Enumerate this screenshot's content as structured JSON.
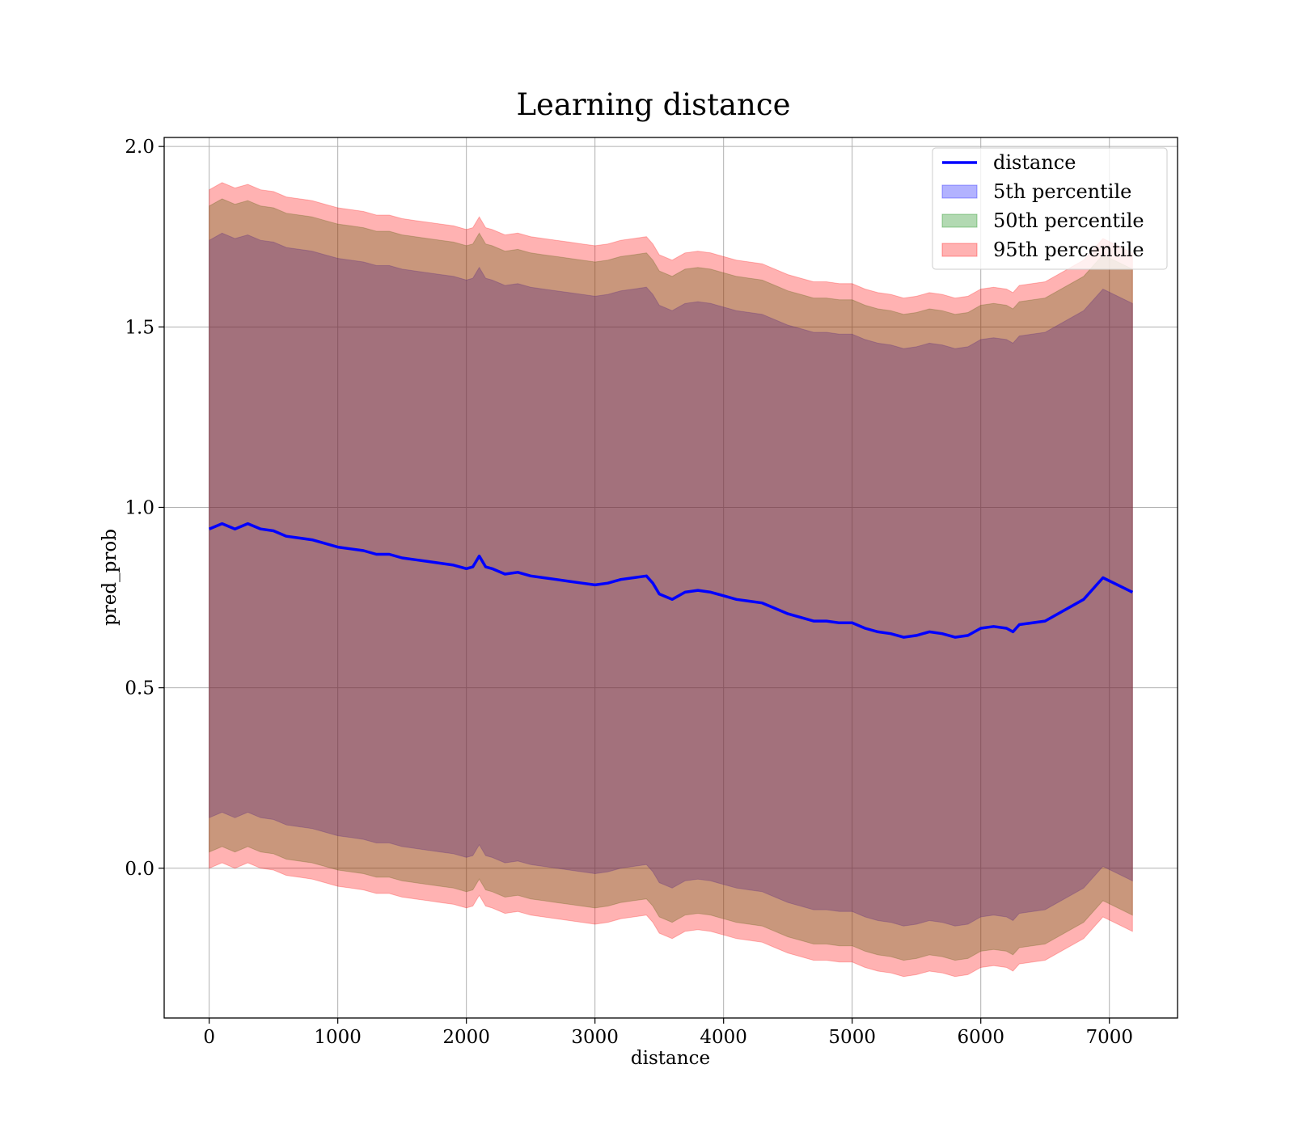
{
  "chart_data": {
    "type": "line",
    "title": "Learning distance",
    "xlabel": "distance",
    "ylabel": "pred_prob",
    "xlim": [
      -350,
      7530
    ],
    "ylim": [
      -0.415,
      2.025
    ],
    "xticks": [
      0,
      1000,
      2000,
      3000,
      4000,
      5000,
      6000,
      7000
    ],
    "yticks": [
      0.0,
      0.5,
      1.0,
      1.5,
      2.0
    ],
    "ytick_labels": [
      "0.0",
      "0.5",
      "1.0",
      "1.5",
      "2.0"
    ],
    "grid": true,
    "legend_position": "top-right",
    "x": [
      0,
      100,
      200,
      300,
      400,
      500,
      600,
      700,
      800,
      900,
      1000,
      1100,
      1200,
      1300,
      1400,
      1500,
      1600,
      1700,
      1800,
      1900,
      2000,
      2050,
      2100,
      2150,
      2200,
      2300,
      2400,
      2500,
      2600,
      2700,
      2800,
      2900,
      3000,
      3100,
      3200,
      3300,
      3400,
      3450,
      3500,
      3600,
      3700,
      3800,
      3900,
      4000,
      4100,
      4200,
      4300,
      4400,
      4500,
      4600,
      4700,
      4800,
      4900,
      5000,
      5100,
      5200,
      5300,
      5400,
      5500,
      5600,
      5700,
      5800,
      5900,
      6000,
      6100,
      6200,
      6250,
      6300,
      6500,
      6800,
      6950,
      7180
    ],
    "series": [
      {
        "name": "distance",
        "kind": "line",
        "color": "#0000ff",
        "values": [
          0.94,
          0.955,
          0.94,
          0.955,
          0.94,
          0.935,
          0.92,
          0.915,
          0.91,
          0.9,
          0.89,
          0.885,
          0.88,
          0.87,
          0.87,
          0.86,
          0.855,
          0.85,
          0.845,
          0.84,
          0.83,
          0.835,
          0.865,
          0.835,
          0.83,
          0.815,
          0.82,
          0.81,
          0.805,
          0.8,
          0.795,
          0.79,
          0.785,
          0.79,
          0.8,
          0.805,
          0.81,
          0.79,
          0.76,
          0.745,
          0.765,
          0.77,
          0.765,
          0.755,
          0.745,
          0.74,
          0.735,
          0.72,
          0.705,
          0.695,
          0.685,
          0.685,
          0.68,
          0.68,
          0.665,
          0.655,
          0.65,
          0.64,
          0.645,
          0.655,
          0.65,
          0.64,
          0.645,
          0.665,
          0.67,
          0.665,
          0.655,
          0.675,
          0.685,
          0.745,
          0.805,
          0.765
        ]
      },
      {
        "name": "5th percentile",
        "kind": "band",
        "color": "#0000ff",
        "opacity": 0.3,
        "upper": [
          1.74,
          1.76,
          1.745,
          1.755,
          1.74,
          1.735,
          1.72,
          1.715,
          1.71,
          1.7,
          1.69,
          1.685,
          1.68,
          1.67,
          1.67,
          1.66,
          1.655,
          1.65,
          1.645,
          1.64,
          1.63,
          1.635,
          1.665,
          1.635,
          1.63,
          1.615,
          1.62,
          1.61,
          1.605,
          1.6,
          1.595,
          1.59,
          1.585,
          1.59,
          1.6,
          1.605,
          1.61,
          1.59,
          1.56,
          1.545,
          1.565,
          1.57,
          1.565,
          1.555,
          1.545,
          1.54,
          1.535,
          1.52,
          1.505,
          1.495,
          1.485,
          1.485,
          1.48,
          1.48,
          1.465,
          1.455,
          1.45,
          1.44,
          1.445,
          1.455,
          1.45,
          1.44,
          1.445,
          1.465,
          1.47,
          1.465,
          1.455,
          1.475,
          1.485,
          1.545,
          1.605,
          1.565
        ],
        "lower": [
          0.14,
          0.155,
          0.14,
          0.155,
          0.14,
          0.135,
          0.12,
          0.115,
          0.11,
          0.1,
          0.09,
          0.085,
          0.08,
          0.07,
          0.07,
          0.06,
          0.055,
          0.05,
          0.045,
          0.04,
          0.03,
          0.035,
          0.065,
          0.035,
          0.03,
          0.015,
          0.02,
          0.01,
          0.005,
          0.0,
          -0.005,
          -0.01,
          -0.015,
          -0.01,
          0.0,
          0.005,
          0.01,
          -0.01,
          -0.04,
          -0.055,
          -0.035,
          -0.03,
          -0.035,
          -0.045,
          -0.055,
          -0.06,
          -0.065,
          -0.08,
          -0.095,
          -0.105,
          -0.115,
          -0.115,
          -0.12,
          -0.12,
          -0.135,
          -0.145,
          -0.15,
          -0.16,
          -0.155,
          -0.145,
          -0.15,
          -0.16,
          -0.155,
          -0.135,
          -0.13,
          -0.135,
          -0.145,
          -0.125,
          -0.115,
          -0.055,
          0.005,
          -0.035
        ]
      },
      {
        "name": "50th percentile",
        "kind": "band",
        "color": "#008000",
        "opacity": 0.3,
        "upper": [
          1.835,
          1.855,
          1.84,
          1.85,
          1.835,
          1.83,
          1.815,
          1.81,
          1.805,
          1.795,
          1.785,
          1.78,
          1.775,
          1.765,
          1.765,
          1.755,
          1.75,
          1.745,
          1.74,
          1.735,
          1.725,
          1.73,
          1.76,
          1.73,
          1.725,
          1.71,
          1.715,
          1.705,
          1.7,
          1.695,
          1.69,
          1.685,
          1.68,
          1.685,
          1.695,
          1.7,
          1.705,
          1.685,
          1.655,
          1.64,
          1.66,
          1.665,
          1.66,
          1.65,
          1.64,
          1.635,
          1.63,
          1.615,
          1.6,
          1.59,
          1.58,
          1.58,
          1.575,
          1.575,
          1.56,
          1.55,
          1.545,
          1.535,
          1.54,
          1.55,
          1.545,
          1.535,
          1.54,
          1.56,
          1.565,
          1.56,
          1.55,
          1.57,
          1.58,
          1.64,
          1.7,
          1.66
        ],
        "lower": [
          0.045,
          0.06,
          0.045,
          0.06,
          0.045,
          0.04,
          0.025,
          0.02,
          0.015,
          0.005,
          -0.005,
          -0.01,
          -0.015,
          -0.025,
          -0.025,
          -0.035,
          -0.04,
          -0.045,
          -0.05,
          -0.055,
          -0.065,
          -0.06,
          -0.03,
          -0.06,
          -0.065,
          -0.08,
          -0.075,
          -0.085,
          -0.09,
          -0.095,
          -0.1,
          -0.105,
          -0.11,
          -0.105,
          -0.095,
          -0.09,
          -0.085,
          -0.105,
          -0.135,
          -0.15,
          -0.13,
          -0.125,
          -0.13,
          -0.14,
          -0.15,
          -0.155,
          -0.16,
          -0.175,
          -0.19,
          -0.2,
          -0.21,
          -0.21,
          -0.215,
          -0.215,
          -0.23,
          -0.24,
          -0.245,
          -0.255,
          -0.25,
          -0.24,
          -0.245,
          -0.255,
          -0.25,
          -0.23,
          -0.225,
          -0.23,
          -0.24,
          -0.22,
          -0.21,
          -0.15,
          -0.09,
          -0.13
        ]
      },
      {
        "name": "95th percentile",
        "kind": "band",
        "color": "#ff0000",
        "opacity": 0.3,
        "upper": [
          1.88,
          1.9,
          1.885,
          1.895,
          1.88,
          1.875,
          1.86,
          1.855,
          1.85,
          1.84,
          1.83,
          1.825,
          1.82,
          1.81,
          1.81,
          1.8,
          1.795,
          1.79,
          1.785,
          1.78,
          1.77,
          1.775,
          1.805,
          1.775,
          1.77,
          1.755,
          1.76,
          1.75,
          1.745,
          1.74,
          1.735,
          1.73,
          1.725,
          1.73,
          1.74,
          1.745,
          1.75,
          1.73,
          1.7,
          1.685,
          1.705,
          1.71,
          1.705,
          1.695,
          1.685,
          1.68,
          1.675,
          1.66,
          1.645,
          1.635,
          1.625,
          1.625,
          1.62,
          1.62,
          1.605,
          1.595,
          1.59,
          1.58,
          1.585,
          1.595,
          1.59,
          1.58,
          1.585,
          1.605,
          1.61,
          1.605,
          1.595,
          1.615,
          1.625,
          1.685,
          1.745,
          1.705
        ],
        "lower": [
          0.0,
          0.015,
          0.0,
          0.015,
          0.0,
          -0.005,
          -0.02,
          -0.025,
          -0.03,
          -0.04,
          -0.05,
          -0.055,
          -0.06,
          -0.07,
          -0.07,
          -0.08,
          -0.085,
          -0.09,
          -0.095,
          -0.1,
          -0.11,
          -0.105,
          -0.075,
          -0.105,
          -0.11,
          -0.125,
          -0.12,
          -0.13,
          -0.135,
          -0.14,
          -0.145,
          -0.15,
          -0.155,
          -0.15,
          -0.14,
          -0.135,
          -0.13,
          -0.15,
          -0.18,
          -0.195,
          -0.175,
          -0.17,
          -0.175,
          -0.185,
          -0.195,
          -0.2,
          -0.205,
          -0.22,
          -0.235,
          -0.245,
          -0.255,
          -0.255,
          -0.26,
          -0.26,
          -0.275,
          -0.285,
          -0.29,
          -0.3,
          -0.295,
          -0.285,
          -0.29,
          -0.3,
          -0.295,
          -0.275,
          -0.27,
          -0.275,
          -0.285,
          -0.265,
          -0.255,
          -0.195,
          -0.135,
          -0.175
        ]
      }
    ]
  }
}
